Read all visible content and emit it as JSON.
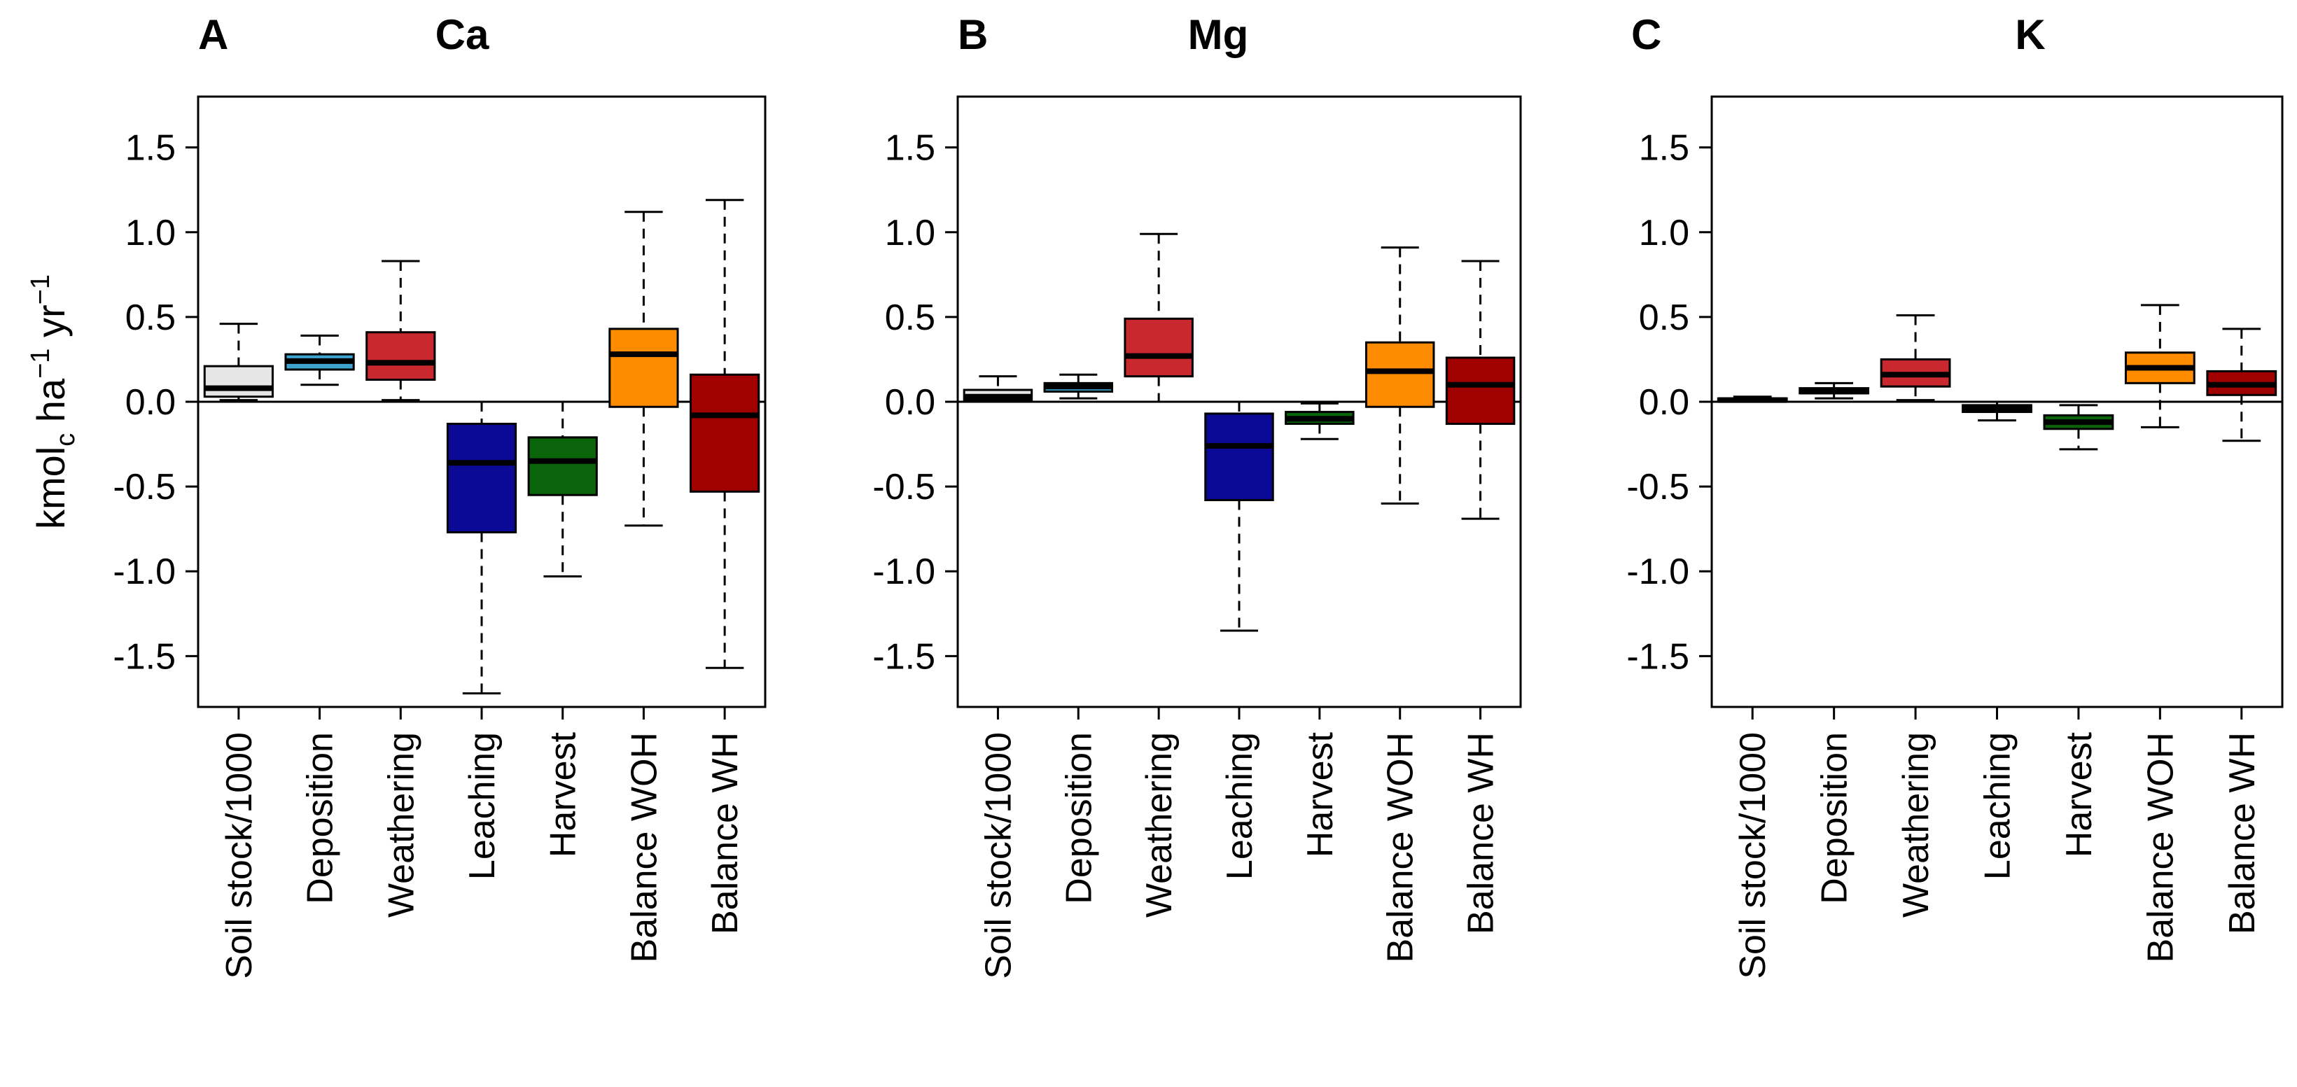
{
  "chart_data": [
    {
      "type": "boxplot",
      "panel": "A",
      "title": "Ca",
      "ylabel": {
        "base": "kmol",
        "sub": "c",
        "mid": " ha",
        "sup1": "−1",
        "mid2": " yr",
        "sup2": "−1"
      },
      "ylim": [
        -1.8,
        1.8
      ],
      "yticks": [
        1.5,
        1.0,
        0.5,
        0.0,
        -0.5,
        -1.0,
        -1.5
      ],
      "ytick_labels": [
        "1.5",
        "1.0",
        "0.5",
        "0.0",
        "-0.5",
        "-1.0",
        "-1.5"
      ],
      "categories": [
        "Soil stock/1000",
        "Deposition",
        "Weathering",
        "Leaching",
        "Harvest",
        "Balance WOH",
        "Balance WH"
      ],
      "colors": [
        "#e6e6e6",
        "#3fa3cf",
        "#c8282e",
        "#0a0a96",
        "#0a640a",
        "#ff8c00",
        "#a00000"
      ],
      "boxes": [
        {
          "min": 0.01,
          "q1": 0.03,
          "median": 0.08,
          "q3": 0.21,
          "max": 0.46
        },
        {
          "min": 0.1,
          "q1": 0.19,
          "median": 0.24,
          "q3": 0.28,
          "max": 0.39
        },
        {
          "min": 0.01,
          "q1": 0.13,
          "median": 0.23,
          "q3": 0.41,
          "max": 0.83
        },
        {
          "min": -1.72,
          "q1": -0.77,
          "median": -0.36,
          "q3": -0.13,
          "max": 0.0
        },
        {
          "min": -1.03,
          "q1": -0.55,
          "median": -0.35,
          "q3": -0.21,
          "max": 0.0
        },
        {
          "min": -0.73,
          "q1": -0.03,
          "median": 0.28,
          "q3": 0.43,
          "max": 1.12
        },
        {
          "min": -1.57,
          "q1": -0.53,
          "median": -0.08,
          "q3": 0.16,
          "max": 1.19
        }
      ]
    },
    {
      "type": "boxplot",
      "panel": "B",
      "title": "Mg",
      "ylim": [
        -1.8,
        1.8
      ],
      "yticks": [
        1.5,
        1.0,
        0.5,
        0.0,
        -0.5,
        -1.0,
        -1.5
      ],
      "ytick_labels": [
        "1.5",
        "1.0",
        "0.5",
        "0.0",
        "-0.5",
        "-1.0",
        "-1.5"
      ],
      "categories": [
        "Soil stock/1000",
        "Deposition",
        "Weathering",
        "Leaching",
        "Harvest",
        "Balance WOH",
        "Balance WH"
      ],
      "colors": [
        "#e6e6e6",
        "#3fa3cf",
        "#c8282e",
        "#0a0a96",
        "#0a640a",
        "#ff8c00",
        "#a00000"
      ],
      "boxes": [
        {
          "min": 0.0,
          "q1": 0.01,
          "median": 0.03,
          "q3": 0.07,
          "max": 0.15
        },
        {
          "min": 0.02,
          "q1": 0.06,
          "median": 0.09,
          "q3": 0.11,
          "max": 0.16
        },
        {
          "min": 0.0,
          "q1": 0.15,
          "median": 0.27,
          "q3": 0.49,
          "max": 0.99
        },
        {
          "min": -1.35,
          "q1": -0.58,
          "median": -0.26,
          "q3": -0.07,
          "max": 0.0
        },
        {
          "min": -0.22,
          "q1": -0.13,
          "median": -0.1,
          "q3": -0.06,
          "max": -0.01
        },
        {
          "min": -0.6,
          "q1": -0.03,
          "median": 0.18,
          "q3": 0.35,
          "max": 0.91
        },
        {
          "min": -0.69,
          "q1": -0.13,
          "median": 0.1,
          "q3": 0.26,
          "max": 0.83
        }
      ]
    },
    {
      "type": "boxplot",
      "panel": "C",
      "title": "K",
      "ylim": [
        -1.8,
        1.8
      ],
      "yticks": [
        1.5,
        1.0,
        0.5,
        0.0,
        -0.5,
        -1.0,
        -1.5
      ],
      "ytick_labels": [
        "1.5",
        "1.0",
        "0.5",
        "0.0",
        "-0.5",
        "-1.0",
        "-1.5"
      ],
      "categories": [
        "Soil stock/1000",
        "Deposition",
        "Weathering",
        "Leaching",
        "Harvest",
        "Balance WOH",
        "Balance WH"
      ],
      "colors": [
        "#e6e6e6",
        "#3fa3cf",
        "#c8282e",
        "#0a0a96",
        "#0a640a",
        "#ff8c00",
        "#a00000"
      ],
      "boxes": [
        {
          "min": 0.0,
          "q1": 0.005,
          "median": 0.01,
          "q3": 0.02,
          "max": 0.03
        },
        {
          "min": 0.02,
          "q1": 0.05,
          "median": 0.06,
          "q3": 0.08,
          "max": 0.11
        },
        {
          "min": 0.01,
          "q1": 0.09,
          "median": 0.16,
          "q3": 0.25,
          "max": 0.51
        },
        {
          "min": -0.11,
          "q1": -0.06,
          "median": -0.04,
          "q3": -0.02,
          "max": 0.0
        },
        {
          "min": -0.28,
          "q1": -0.16,
          "median": -0.12,
          "q3": -0.08,
          "max": -0.02
        },
        {
          "min": -0.15,
          "q1": 0.11,
          "median": 0.2,
          "q3": 0.29,
          "max": 0.57
        },
        {
          "min": -0.23,
          "q1": 0.04,
          "median": 0.1,
          "q3": 0.18,
          "max": 0.43
        }
      ]
    }
  ]
}
